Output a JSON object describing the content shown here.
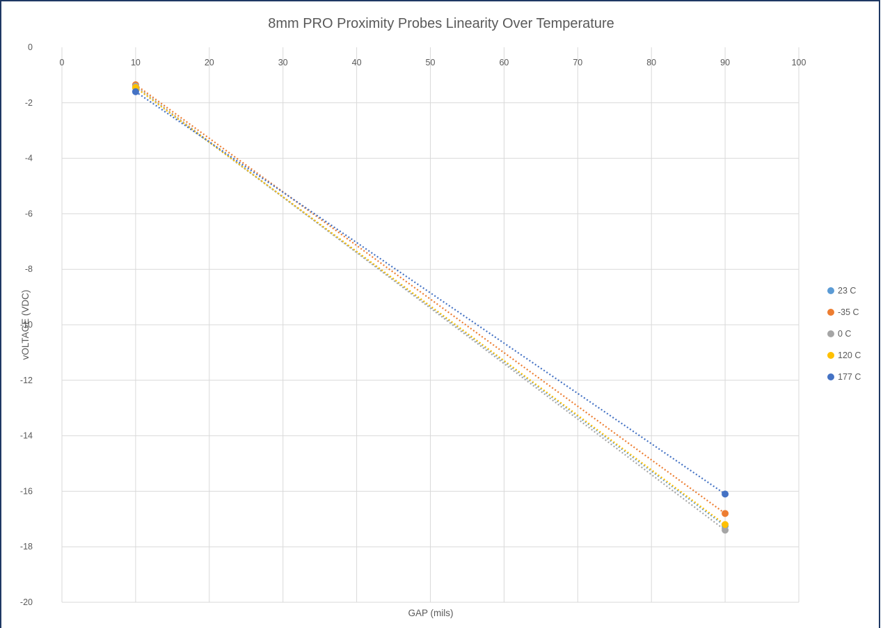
{
  "chart_data": {
    "type": "scatter",
    "title": "8mm PRO Proximity Probes Linearity Over Temperature",
    "xlabel": "GAP (mils)",
    "ylabel": "vOLTAGE (VDC)",
    "xlim": [
      0,
      100
    ],
    "ylim": [
      -20,
      0
    ],
    "x_ticks": [
      "0",
      "10",
      "20",
      "30",
      "40",
      "50",
      "60",
      "70",
      "80",
      "90",
      "100"
    ],
    "y_ticks": [
      "0",
      "-2",
      "-4",
      "-6",
      "-8",
      "-10",
      "-12",
      "-14",
      "-16",
      "-18",
      "-20"
    ],
    "x_axis_position": "top",
    "grid": true,
    "trendlines": "linear, dotted",
    "legend_position": "right",
    "series": [
      {
        "name": "23 C",
        "color": "#5b9bd5",
        "points": [
          [
            10,
            -1.45
          ],
          [
            90,
            -17.25
          ]
        ]
      },
      {
        "name": "-35 C",
        "color": "#ed7d31",
        "points": [
          [
            10,
            -1.35
          ],
          [
            90,
            -16.8
          ]
        ]
      },
      {
        "name": "0 C",
        "color": "#a5a5a5",
        "points": [
          [
            10,
            -1.4
          ],
          [
            90,
            -17.4
          ]
        ]
      },
      {
        "name": "120 C",
        "color": "#ffc000",
        "points": [
          [
            10,
            -1.45
          ],
          [
            90,
            -17.2
          ]
        ]
      },
      {
        "name": "177 C",
        "color": "#4472c4",
        "points": [
          [
            10,
            -1.6
          ],
          [
            90,
            -16.1
          ]
        ]
      }
    ]
  }
}
